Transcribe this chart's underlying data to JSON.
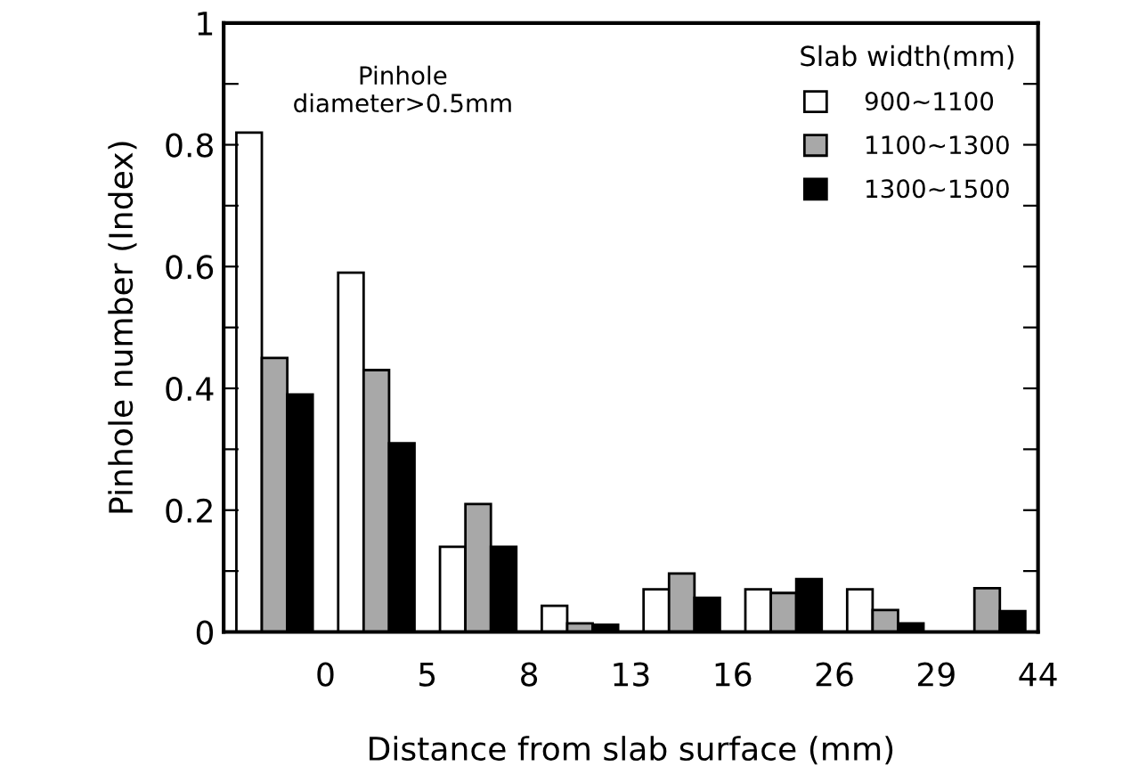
{
  "chart_data": {
    "type": "bar",
    "categories": [
      null,
      null,
      null,
      null,
      null,
      null,
      null,
      null
    ],
    "xlabel": "Distance from slab surface (mm)",
    "ylabel": "Pinhole number (Index)",
    "ylim": [
      0,
      1
    ],
    "yticks": [
      0,
      {
        "value": 0.1,
        "label": null
      },
      0.2,
      {
        "value": 0.3,
        "label": null
      },
      0.4,
      {
        "value": 0.5,
        "label": null
      },
      0.6,
      {
        "value": 0.7,
        "label": null
      },
      0.8,
      {
        "value": 0.9,
        "label": null
      },
      1
    ],
    "legend_title": "Slab width(mm)",
    "legend": "top right",
    "grid": false,
    "annotations": [
      "Pinhole\ndiameter>0.5mm",
      "0",
      "5",
      "8",
      "13",
      "16",
      "26",
      "29",
      "44"
    ],
    "series": [
      {
        "name": "900∼1100",
        "color": "#ffffff",
        "values": [
          0.82,
          0.59,
          0.14,
          0.043,
          0.07,
          0.07,
          0.07,
          0
        ]
      },
      {
        "name": "1100∼1300",
        "color": "#a8a8a8",
        "values": [
          0.45,
          0.43,
          0.21,
          0.014,
          0.096,
          0.064,
          0.036,
          0.072
        ]
      },
      {
        "name": "1300∼1500",
        "color": "#000000",
        "values": [
          0.39,
          0.31,
          0.14,
          0.012,
          0.056,
          0.087,
          0.014,
          0.034
        ]
      }
    ]
  }
}
